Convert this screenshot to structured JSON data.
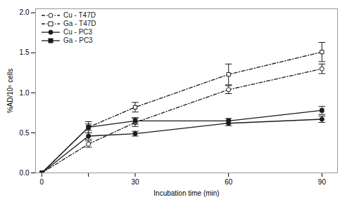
{
  "chart_data": {
    "type": "line",
    "xlabel": "Incubation time (min)",
    "ylabel": "%AD/10⁵ cells",
    "x": [
      0,
      15,
      30,
      60,
      90
    ],
    "xlim": [
      -2,
      95
    ],
    "xticks": [
      0,
      {
        "value": 15,
        "label": null
      },
      30,
      60,
      90
    ],
    "ylim": [
      0.0,
      2.05
    ],
    "yticks": [
      {
        "value": 0.0,
        "label": "0.0"
      },
      0.5,
      {
        "value": 1.0,
        "label": "1.0"
      },
      1.5,
      {
        "value": 2.0,
        "label": "2.0"
      }
    ],
    "grid": false,
    "legend": "upper left",
    "series": [
      {
        "name": "Cu - T47D",
        "color": "#1a1a1a",
        "line_style": "dashdot",
        "marker": "open_circle",
        "values": [
          0.0,
          0.36,
          0.63,
          1.04,
          1.3
        ],
        "yerr": [
          0.0,
          0.04,
          0.05,
          0.05,
          0.06
        ]
      },
      {
        "name": "Ga - T47D",
        "color": "#1a1a1a",
        "line_style": "dashdot",
        "marker": "open_square",
        "values": [
          0.0,
          0.57,
          0.82,
          1.23,
          1.51
        ],
        "yerr": [
          0.0,
          0.07,
          0.06,
          0.13,
          0.12
        ]
      },
      {
        "name": "Cu - PC3",
        "color": "#1a1a1a",
        "line_style": "solid",
        "marker": "circle",
        "values": [
          0.0,
          0.46,
          0.49,
          0.62,
          0.67
        ],
        "yerr": [
          0.0,
          0.04,
          0.03,
          0.03,
          0.04
        ]
      },
      {
        "name": "Ga - PC3",
        "color": "#1a1a1a",
        "line_style": "solid",
        "marker": "square",
        "values": [
          0.0,
          0.57,
          0.65,
          0.65,
          0.78
        ],
        "yerr": [
          0.0,
          0.04,
          0.04,
          0.03,
          0.05
        ]
      }
    ]
  }
}
